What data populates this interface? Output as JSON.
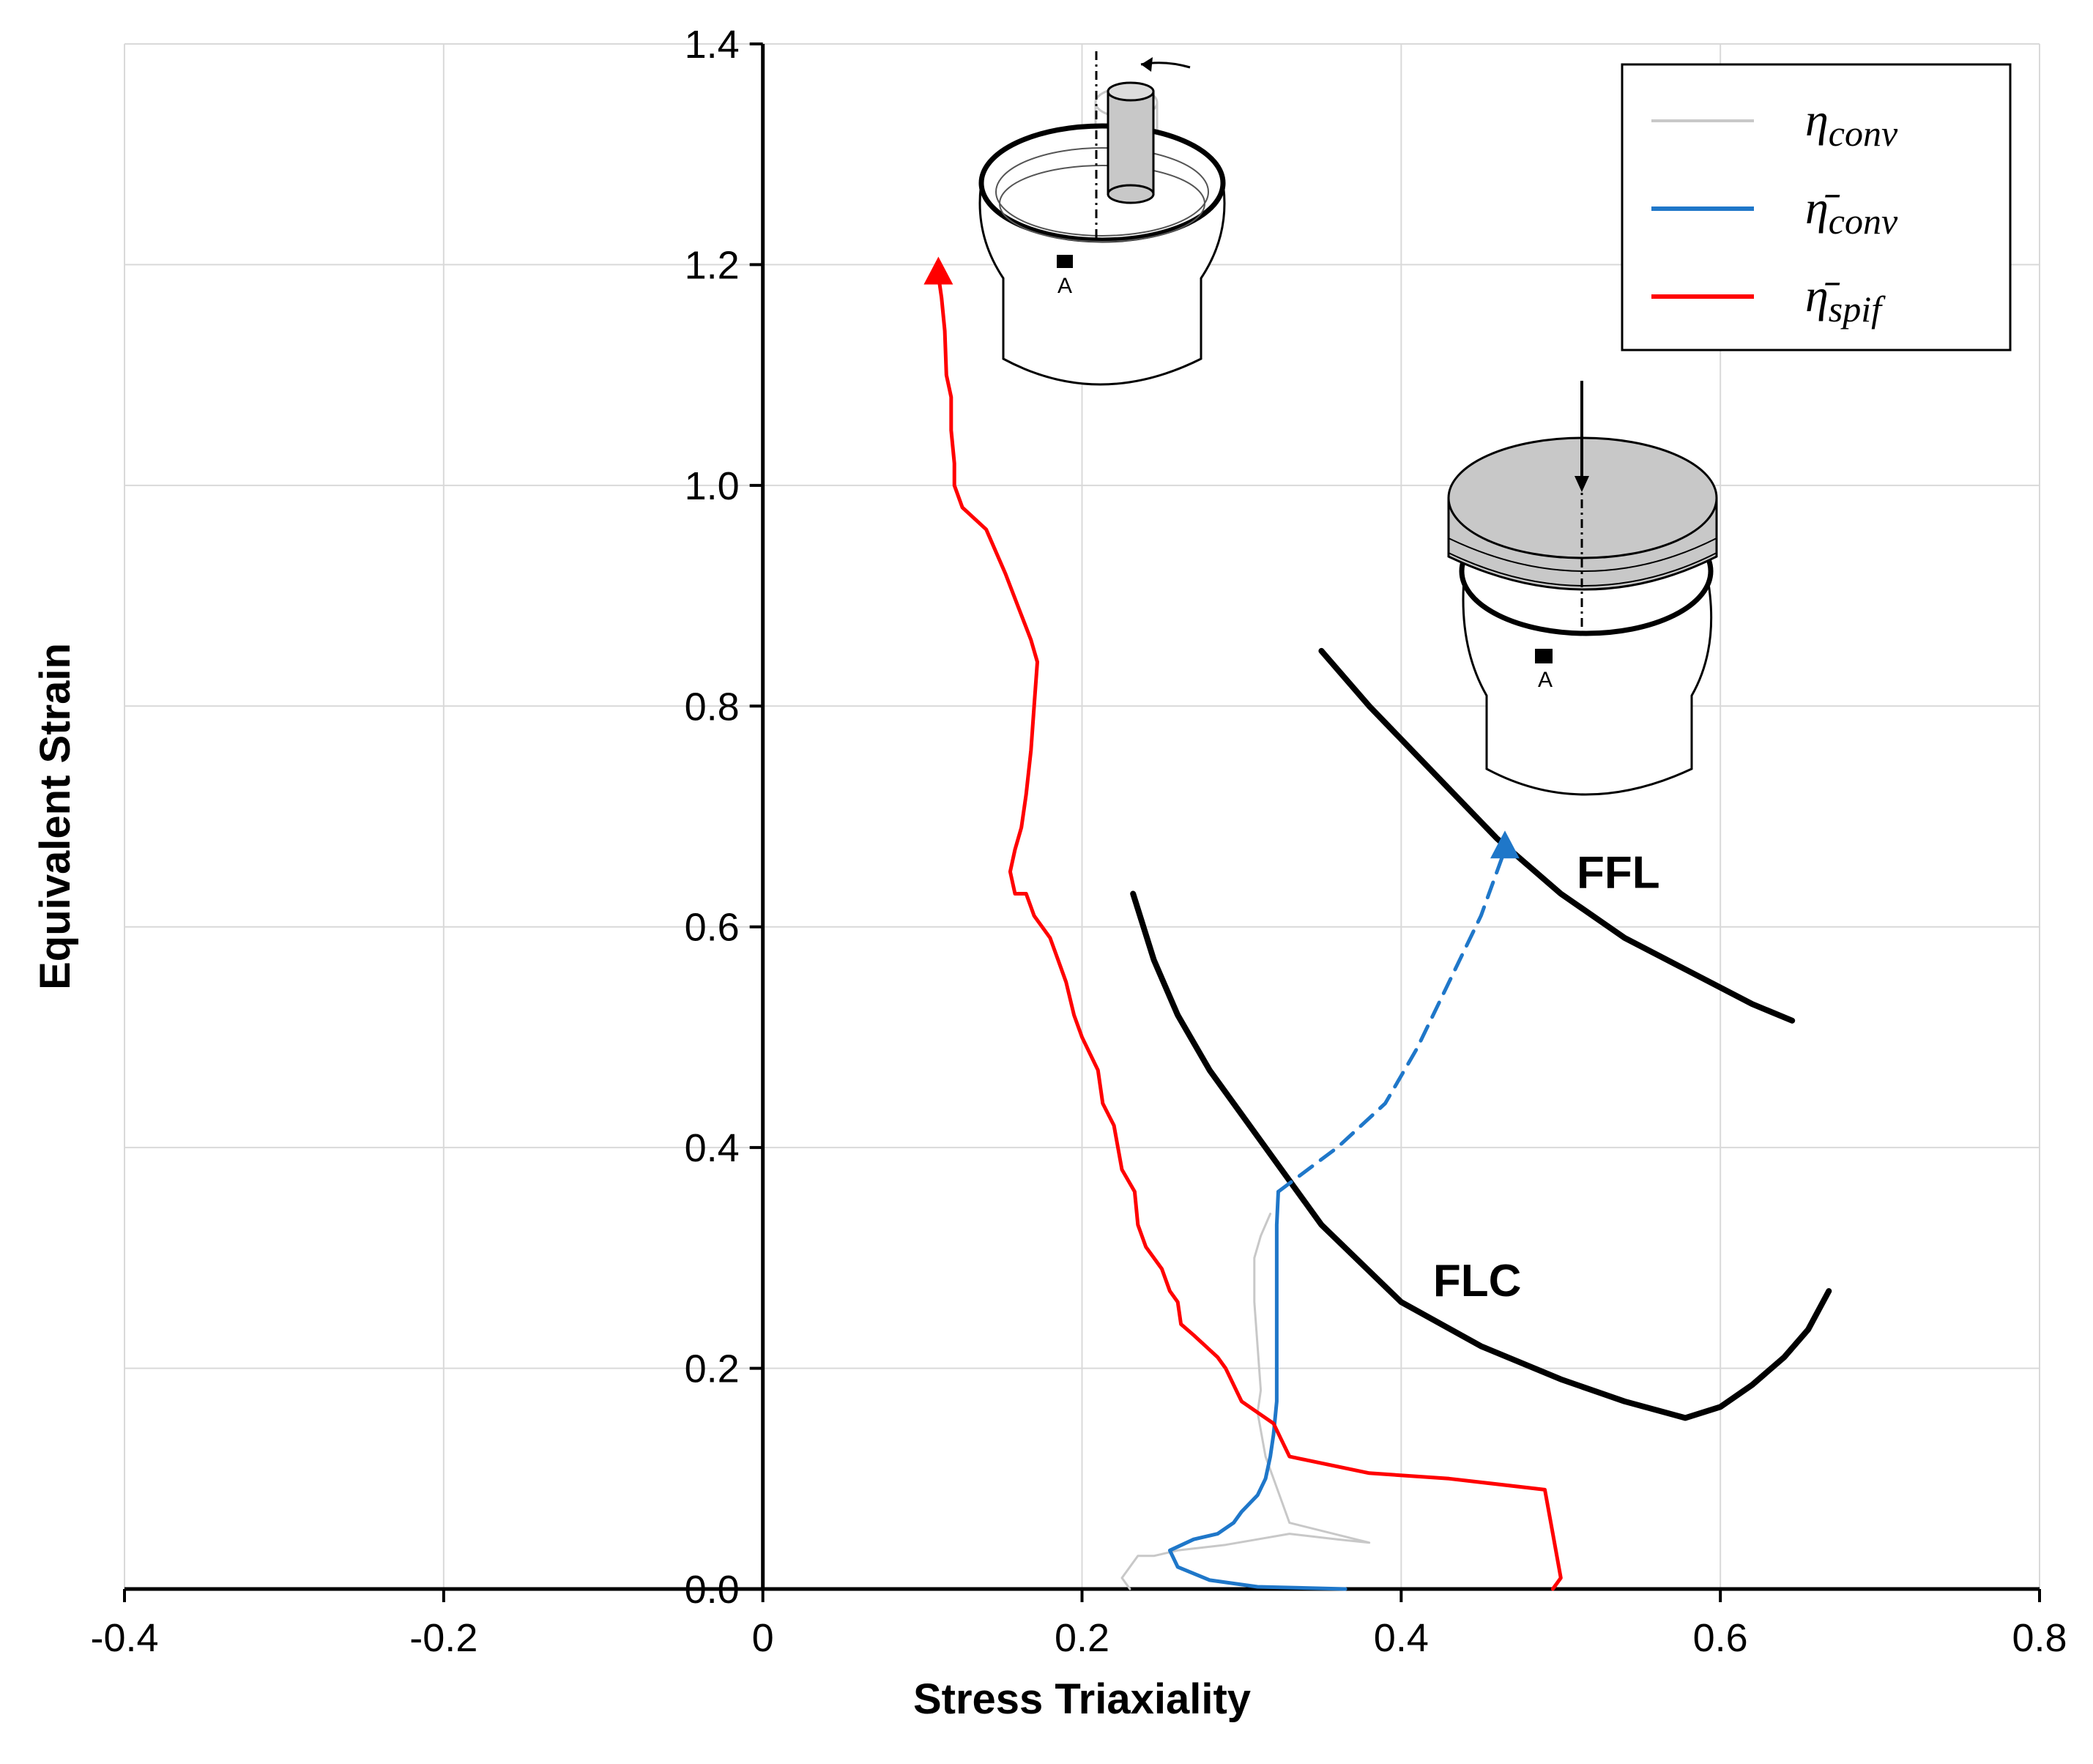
{
  "chart_data": {
    "type": "line",
    "title": "",
    "xlabel": "Stress Triaxiality",
    "ylabel": "Equivalent Strain",
    "xlim": [
      -0.4,
      0.8
    ],
    "ylim": [
      0.0,
      1.4
    ],
    "grid": true,
    "x_ticks": [
      "-0.4",
      "-0.2",
      "0",
      "0.2",
      "0.4",
      "0.6",
      "0.8"
    ],
    "y_ticks": [
      "0.0",
      "0.2",
      "0.4",
      "0.6",
      "0.8",
      "1.0",
      "1.2",
      "1.4"
    ],
    "legend_position": "top-right",
    "legend": [
      {
        "symbol": "η",
        "subscript": "conv",
        "bar": false,
        "color": "#c8c8c8"
      },
      {
        "symbol": "η̄",
        "subscript": "conv",
        "bar": true,
        "color": "#1f77c9"
      },
      {
        "symbol": "η̄",
        "subscript": "spif",
        "bar": true,
        "color": "#ff0000"
      }
    ],
    "series": [
      {
        "name": "η_conv",
        "color": "#c8c8c8",
        "style": "solid",
        "x": [
          0.23,
          0.225,
          0.235,
          0.245,
          0.26,
          0.29,
          0.31,
          0.33,
          0.36,
          0.38,
          0.33,
          0.32,
          0.315,
          0.31,
          0.312,
          0.31,
          0.308,
          0.308,
          0.312,
          0.318
        ],
        "y": [
          0.0,
          0.01,
          0.03,
          0.03,
          0.035,
          0.04,
          0.045,
          0.05,
          0.045,
          0.042,
          0.06,
          0.1,
          0.12,
          0.16,
          0.18,
          0.22,
          0.26,
          0.3,
          0.32,
          0.34
        ]
      },
      {
        "name": "η̄_conv",
        "color": "#1f77c9",
        "style": "solid",
        "x": [
          0.365,
          0.31,
          0.28,
          0.26,
          0.255,
          0.27,
          0.285,
          0.295,
          0.3,
          0.31,
          0.315,
          0.318,
          0.32,
          0.322,
          0.322,
          0.322,
          0.322,
          0.323
        ],
        "y": [
          0.0,
          0.002,
          0.008,
          0.02,
          0.035,
          0.045,
          0.05,
          0.06,
          0.07,
          0.085,
          0.1,
          0.12,
          0.14,
          0.17,
          0.22,
          0.28,
          0.33,
          0.36
        ]
      },
      {
        "name": "η̄_conv (after necking)",
        "color": "#1f77c9",
        "style": "dashed",
        "marker_end": "triangle",
        "x": [
          0.323,
          0.36,
          0.39,
          0.41,
          0.43,
          0.45,
          0.465
        ],
        "y": [
          0.36,
          0.4,
          0.44,
          0.49,
          0.55,
          0.61,
          0.67
        ]
      },
      {
        "name": "η̄_spif",
        "color": "#ff0000",
        "style": "solid",
        "marker_end": "triangle",
        "x": [
          0.495,
          0.5,
          0.495,
          0.49,
          0.43,
          0.38,
          0.33,
          0.32,
          0.31,
          0.3,
          0.29,
          0.285,
          0.27,
          0.262,
          0.26,
          0.255,
          0.25,
          0.24,
          0.235,
          0.233,
          0.225,
          0.22,
          0.213,
          0.21,
          0.2,
          0.195,
          0.19,
          0.185,
          0.18,
          0.17,
          0.165,
          0.158,
          0.155,
          0.158,
          0.162,
          0.165,
          0.168,
          0.17,
          0.172,
          0.168,
          0.16,
          0.152,
          0.14,
          0.125,
          0.12,
          0.12,
          0.118,
          0.118,
          0.115,
          0.114,
          0.112,
          0.11
        ],
        "y": [
          0.0,
          0.01,
          0.05,
          0.09,
          0.1,
          0.105,
          0.12,
          0.15,
          0.16,
          0.17,
          0.2,
          0.21,
          0.23,
          0.24,
          0.26,
          0.27,
          0.29,
          0.31,
          0.33,
          0.36,
          0.38,
          0.42,
          0.44,
          0.47,
          0.5,
          0.52,
          0.55,
          0.57,
          0.59,
          0.61,
          0.63,
          0.63,
          0.65,
          0.67,
          0.69,
          0.72,
          0.76,
          0.8,
          0.84,
          0.86,
          0.89,
          0.92,
          0.96,
          0.98,
          1.0,
          1.02,
          1.05,
          1.08,
          1.1,
          1.14,
          1.17,
          1.19
        ]
      },
      {
        "name": "FFL",
        "color": "#000000",
        "style": "solid",
        "x": [
          0.35,
          0.38,
          0.42,
          0.46,
          0.5,
          0.54,
          0.58,
          0.62,
          0.645
        ],
        "y": [
          0.85,
          0.8,
          0.74,
          0.68,
          0.63,
          0.59,
          0.56,
          0.53,
          0.515
        ]
      },
      {
        "name": "FLC",
        "color": "#000000",
        "style": "solid",
        "x": [
          0.232,
          0.245,
          0.26,
          0.28,
          0.3,
          0.32,
          0.35,
          0.4,
          0.45,
          0.5,
          0.54,
          0.578,
          0.6,
          0.62,
          0.64,
          0.655,
          0.668
        ],
        "y": [
          0.63,
          0.57,
          0.52,
          0.47,
          0.43,
          0.39,
          0.33,
          0.26,
          0.22,
          0.19,
          0.17,
          0.155,
          0.165,
          0.185,
          0.21,
          0.235,
          0.27
        ]
      }
    ],
    "annotations": [
      {
        "text": "FFL",
        "x": 0.51,
        "y": 0.65
      },
      {
        "text": "FLC",
        "x": 0.42,
        "y": 0.28
      }
    ],
    "schematic_labels": [
      "A",
      "A"
    ]
  }
}
